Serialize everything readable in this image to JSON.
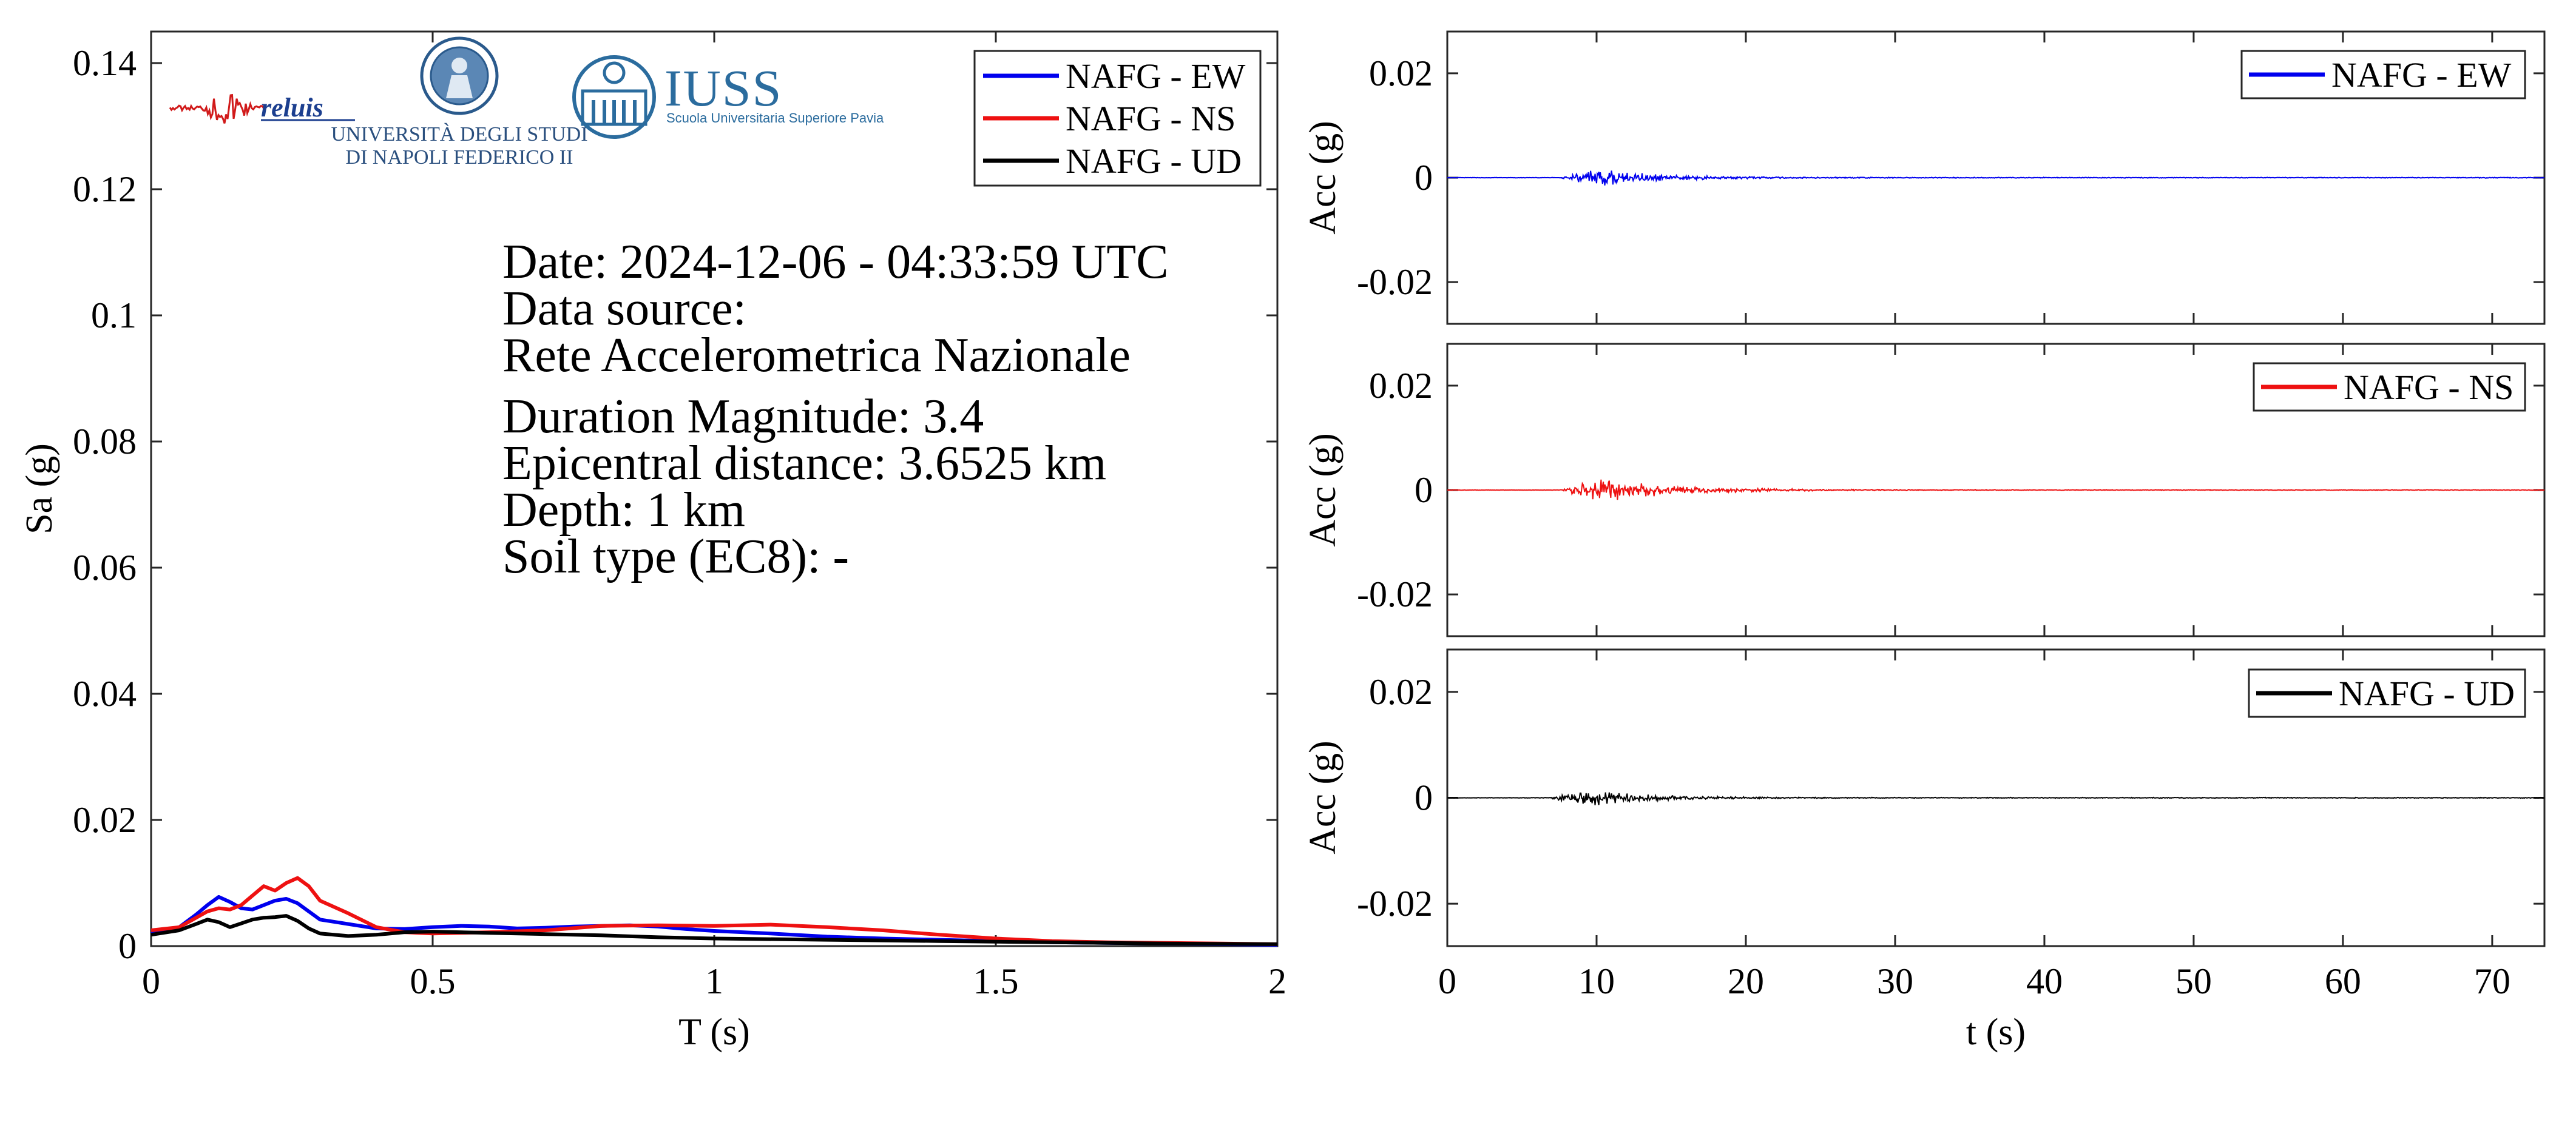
{
  "colors": {
    "ew": "#0000ee",
    "ns": "#ee1111",
    "ud": "#000000"
  },
  "logos": {
    "reluis": "reluis",
    "unina_line1": "UNIVERSITÀ DEGLI STUDI",
    "unina_line2": "DI NAPOLI FEDERICO II",
    "iuss_title": "IUSS",
    "iuss_subtitle": "Scuola Universitaria Superiore Pavia"
  },
  "info": {
    "date": "Date: 2024-12-06 - 04:33:59 UTC",
    "source_label": "Data source:",
    "source_value": "Rete Accelerometrica Nazionale",
    "magnitude": "Duration Magnitude: 3.4",
    "distance": "Epicentral distance: 3.6525 km",
    "depth": "Depth: 1 km",
    "soil": "Soil type (EC8): -"
  },
  "chart_data": [
    {
      "type": "line",
      "xlabel": "T (s)",
      "ylabel": "Sa (g)",
      "xlim": [
        0,
        2
      ],
      "ylim": [
        0,
        0.145
      ],
      "xticks": [
        0,
        0.5,
        1,
        1.5,
        2
      ],
      "xtick_labels": [
        "0",
        "0.5",
        "1",
        "1.5",
        "2"
      ],
      "yticks": [
        0,
        0.02,
        0.04,
        0.06,
        0.08,
        0.1,
        0.12,
        0.14
      ],
      "ytick_labels": [
        "0",
        "0.02",
        "0.04",
        "0.06",
        "0.08",
        "0.1",
        "0.12",
        "0.14"
      ],
      "grid": false,
      "legend": "top-right",
      "series": [
        {
          "name": "NAFG - EW",
          "color": "#0000ee",
          "x": [
            0,
            0.05,
            0.08,
            0.1,
            0.12,
            0.14,
            0.16,
            0.18,
            0.2,
            0.22,
            0.24,
            0.26,
            0.28,
            0.3,
            0.35,
            0.4,
            0.45,
            0.5,
            0.55,
            0.6,
            0.65,
            0.7,
            0.75,
            0.8,
            0.85,
            0.9,
            0.95,
            1.0,
            1.1,
            1.2,
            1.3,
            1.4,
            1.5,
            1.6,
            1.7,
            1.8,
            1.9,
            2.0
          ],
          "y": [
            0.002,
            0.003,
            0.005,
            0.0065,
            0.0078,
            0.007,
            0.006,
            0.0058,
            0.0065,
            0.0072,
            0.0075,
            0.0068,
            0.0055,
            0.0042,
            0.0035,
            0.0028,
            0.0027,
            0.003,
            0.0032,
            0.0031,
            0.0028,
            0.0029,
            0.0031,
            0.0032,
            0.0033,
            0.0031,
            0.0027,
            0.0024,
            0.002,
            0.0015,
            0.0012,
            0.001,
            0.0008,
            0.0006,
            0.0005,
            0.0004,
            0.0003,
            0.0002
          ]
        },
        {
          "name": "NAFG - NS",
          "color": "#ee1111",
          "x": [
            0,
            0.05,
            0.08,
            0.1,
            0.12,
            0.14,
            0.16,
            0.18,
            0.2,
            0.22,
            0.24,
            0.26,
            0.28,
            0.3,
            0.35,
            0.4,
            0.45,
            0.5,
            0.6,
            0.7,
            0.8,
            0.9,
            1.0,
            1.1,
            1.2,
            1.3,
            1.4,
            1.5,
            1.6,
            1.7,
            1.8,
            1.9,
            2.0
          ],
          "y": [
            0.0025,
            0.003,
            0.0045,
            0.0055,
            0.006,
            0.0058,
            0.0065,
            0.008,
            0.0095,
            0.0088,
            0.01,
            0.0108,
            0.0095,
            0.0072,
            0.0052,
            0.003,
            0.0022,
            0.002,
            0.0022,
            0.0025,
            0.0032,
            0.0033,
            0.0032,
            0.0034,
            0.003,
            0.0025,
            0.0018,
            0.0012,
            0.0008,
            0.0006,
            0.0005,
            0.0004,
            0.0003
          ]
        },
        {
          "name": "NAFG - UD",
          "color": "#000000",
          "x": [
            0,
            0.05,
            0.08,
            0.1,
            0.12,
            0.14,
            0.16,
            0.18,
            0.2,
            0.22,
            0.24,
            0.26,
            0.28,
            0.3,
            0.35,
            0.4,
            0.45,
            0.5,
            0.6,
            0.7,
            0.8,
            0.9,
            1.0,
            1.2,
            1.4,
            1.6,
            1.8,
            2.0
          ],
          "y": [
            0.0018,
            0.0025,
            0.0035,
            0.0042,
            0.0038,
            0.003,
            0.0036,
            0.0042,
            0.0045,
            0.0046,
            0.0048,
            0.004,
            0.0028,
            0.002,
            0.0016,
            0.0018,
            0.0022,
            0.0023,
            0.0021,
            0.0019,
            0.0017,
            0.0014,
            0.0012,
            0.001,
            0.0008,
            0.0006,
            0.0004,
            0.0003
          ]
        }
      ]
    },
    {
      "type": "line",
      "ylabel": "Acc (g)",
      "xlim": [
        0,
        73.5
      ],
      "ylim": [
        -0.028,
        0.028
      ],
      "yticks": [
        -0.02,
        0,
        0.02
      ],
      "ytick_labels": [
        "-0.02",
        "0",
        "0.02"
      ],
      "grid": false,
      "legend": "top-right",
      "series": [
        {
          "name": "NAFG - EW",
          "color": "#0000ee",
          "onset": 7.5,
          "peak_time": 10.0,
          "peak": 0.0018,
          "decay": 4.0
        }
      ]
    },
    {
      "type": "line",
      "ylabel": "Acc (g)",
      "xlim": [
        0,
        73.5
      ],
      "ylim": [
        -0.028,
        0.028
      ],
      "yticks": [
        -0.02,
        0,
        0.02
      ],
      "ytick_labels": [
        "-0.02",
        "0",
        "0.02"
      ],
      "grid": false,
      "legend": "top-right",
      "series": [
        {
          "name": "NAFG - NS",
          "color": "#ee1111",
          "onset": 7.5,
          "peak_time": 10.0,
          "peak": 0.0024,
          "decay": 5.0
        }
      ]
    },
    {
      "type": "line",
      "xlabel": "t (s)",
      "ylabel": "Acc (g)",
      "xlim": [
        0,
        73.5
      ],
      "ylim": [
        -0.028,
        0.028
      ],
      "xticks": [
        0,
        10,
        20,
        30,
        40,
        50,
        60,
        70
      ],
      "xtick_labels": [
        "0",
        "10",
        "20",
        "30",
        "40",
        "50",
        "60",
        "70"
      ],
      "yticks": [
        -0.02,
        0,
        0.02
      ],
      "ytick_labels": [
        "-0.02",
        "0",
        "0.02"
      ],
      "grid": false,
      "legend": "top-right",
      "series": [
        {
          "name": "NAFG - UD",
          "color": "#000000",
          "onset": 6.5,
          "peak_time": 9.5,
          "peak": 0.0016,
          "decay": 4.0
        }
      ]
    }
  ]
}
